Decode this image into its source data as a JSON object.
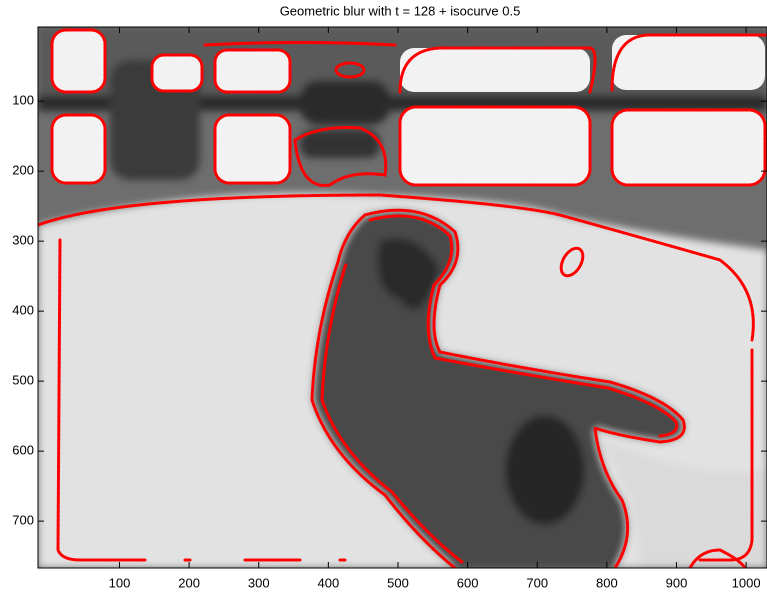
{
  "chart_data": {
    "type": "image",
    "title": "Geometric blur with t = 128 + isocurve 0.5",
    "xlim": [
      -17,
      1030
    ],
    "ylim": [
      -6,
      767
    ],
    "y_reversed": true,
    "xticks": [
      100,
      200,
      300,
      400,
      500,
      600,
      700,
      800,
      900,
      1000
    ],
    "yticks": [
      100,
      200,
      300,
      400,
      500,
      600,
      700
    ]
  }
}
